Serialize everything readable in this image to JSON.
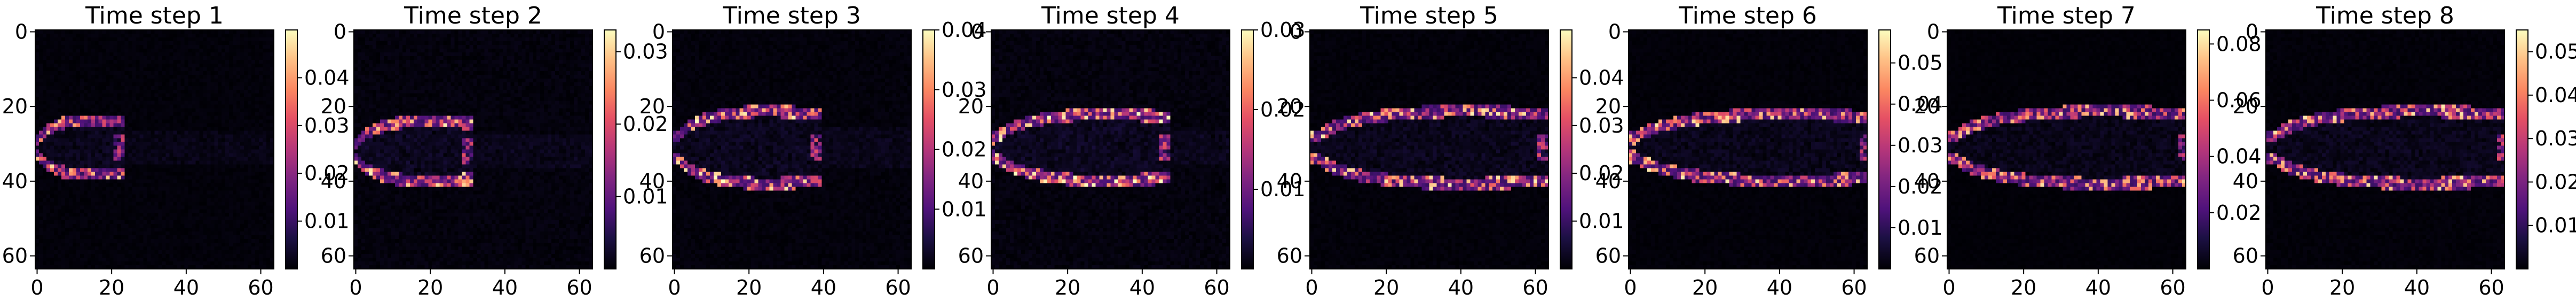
{
  "colormap": "magma",
  "colors": {
    "background": "#ffffff",
    "frame": "#000000",
    "text": "#000000"
  },
  "chart_data": [
    {
      "type": "heatmap",
      "title": "Time step 1",
      "grid": [
        64,
        64
      ],
      "xlim": [
        0,
        63
      ],
      "ylim": [
        63,
        0
      ],
      "xticks": [
        "0",
        "20",
        "40",
        "60"
      ],
      "yticks": [
        "0",
        "20",
        "40",
        "60"
      ],
      "colorbar": {
        "min": 0,
        "max": 0.05,
        "ticks": [
          "0.04",
          "0.03",
          "0.02",
          "0.01"
        ]
      },
      "shape": {
        "cy": 31,
        "tip": 22,
        "half": 9,
        "peak": 0.046
      }
    },
    {
      "type": "heatmap",
      "title": "Time step 2",
      "grid": [
        64,
        64
      ],
      "xlim": [
        0,
        63
      ],
      "ylim": [
        63,
        0
      ],
      "xticks": [
        "0",
        "20",
        "40",
        "60"
      ],
      "yticks": [
        "0",
        "20",
        "40",
        "60"
      ],
      "colorbar": {
        "min": 0,
        "max": 0.033,
        "ticks": [
          "0.03",
          "0.02",
          "0.01"
        ]
      },
      "shape": {
        "cy": 32,
        "tip": 30,
        "half": 10,
        "peak": 0.032
      }
    },
    {
      "type": "heatmap",
      "title": "Time step 3",
      "grid": [
        64,
        64
      ],
      "xlim": [
        0,
        63
      ],
      "ylim": [
        63,
        0
      ],
      "xticks": [
        "0",
        "20",
        "40",
        "60"
      ],
      "yticks": [
        "0",
        "20",
        "40",
        "60"
      ],
      "colorbar": {
        "min": 0,
        "max": 0.04,
        "ticks": [
          "0.04",
          "0.03",
          "0.02",
          "0.01"
        ]
      },
      "shape": {
        "cy": 31,
        "tip": 38,
        "half": 12,
        "peak": 0.04
      }
    },
    {
      "type": "heatmap",
      "title": "Time step 4",
      "grid": [
        64,
        64
      ],
      "xlim": [
        0,
        63
      ],
      "ylim": [
        63,
        0
      ],
      "xticks": [
        "0",
        "20",
        "40",
        "60"
      ],
      "yticks": [
        "0",
        "20",
        "40",
        "60"
      ],
      "colorbar": {
        "min": 0,
        "max": 0.03,
        "ticks": [
          "0.03",
          "0.02",
          "0.01"
        ]
      },
      "shape": {
        "cy": 31,
        "tip": 46,
        "half": 11,
        "peak": 0.03
      }
    },
    {
      "type": "heatmap",
      "title": "Time step 5",
      "grid": [
        64,
        64
      ],
      "xlim": [
        0,
        63
      ],
      "ylim": [
        63,
        0
      ],
      "xticks": [
        "0",
        "20",
        "40",
        "60"
      ],
      "yticks": [
        "0",
        "20",
        "40",
        "60"
      ],
      "colorbar": {
        "min": 0,
        "max": 0.05,
        "ticks": [
          "0.04",
          "0.03",
          "0.02",
          "0.01"
        ]
      },
      "shape": {
        "cy": 31,
        "tip": 62,
        "half": 12,
        "peak": 0.048
      }
    },
    {
      "type": "heatmap",
      "title": "Time step 6",
      "grid": [
        64,
        64
      ],
      "xlim": [
        0,
        63
      ],
      "ylim": [
        63,
        0
      ],
      "xticks": [
        "0",
        "20",
        "40",
        "60"
      ],
      "yticks": [
        "0",
        "20",
        "40",
        "60"
      ],
      "colorbar": {
        "min": 0,
        "max": 0.058,
        "ticks": [
          "0.05",
          "0.04",
          "0.03",
          "0.02",
          "0.01"
        ]
      },
      "shape": {
        "cy": 31,
        "tip": 63,
        "half": 11,
        "peak": 0.056
      }
    },
    {
      "type": "heatmap",
      "title": "Time step 7",
      "grid": [
        64,
        64
      ],
      "xlim": [
        0,
        63
      ],
      "ylim": [
        63,
        0
      ],
      "xticks": [
        "0",
        "20",
        "40",
        "60"
      ],
      "yticks": [
        "0",
        "20",
        "40",
        "60"
      ],
      "colorbar": {
        "min": 0,
        "max": 0.085,
        "ticks": [
          "0.08",
          "0.06",
          "0.04",
          "0.02"
        ]
      },
      "shape": {
        "cy": 31,
        "tip": 63,
        "half": 12,
        "peak": 0.08
      }
    },
    {
      "type": "heatmap",
      "title": "Time step 8",
      "grid": [
        64,
        64
      ],
      "xlim": [
        0,
        63
      ],
      "ylim": [
        63,
        0
      ],
      "xticks": [
        "0",
        "20",
        "40",
        "60"
      ],
      "yticks": [
        "0",
        "20",
        "40",
        "60"
      ],
      "colorbar": {
        "min": 0,
        "max": 0.055,
        "ticks": [
          "0.05",
          "0.04",
          "0.03",
          "0.02",
          "0.01"
        ]
      },
      "shape": {
        "cy": 31,
        "tip": 63,
        "half": 12,
        "peak": 0.052
      }
    }
  ]
}
